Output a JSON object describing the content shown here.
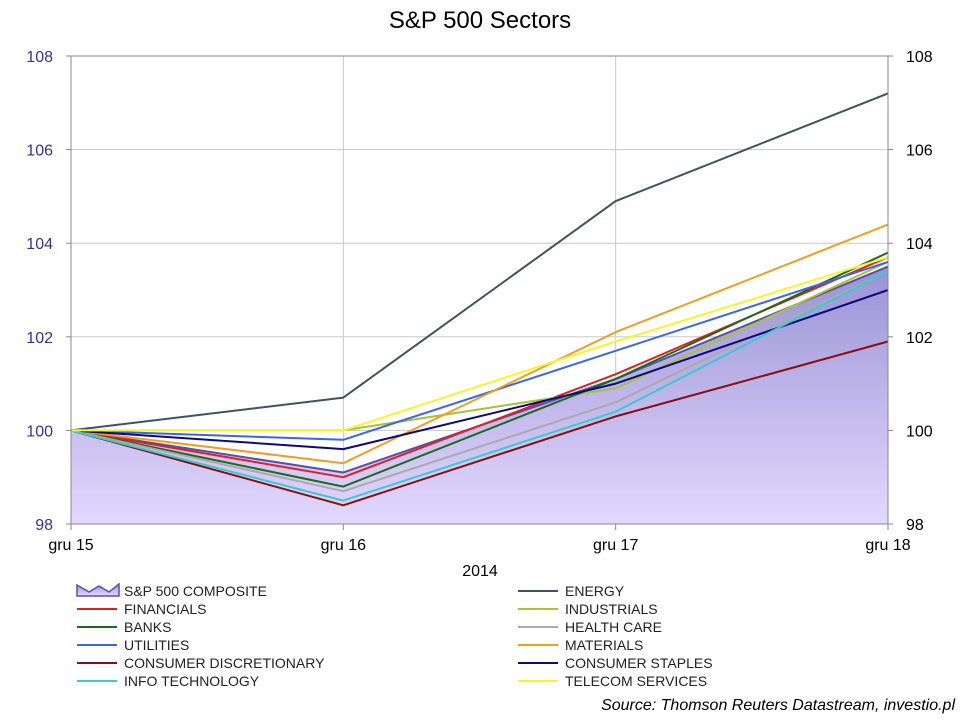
{
  "chart_data": {
    "type": "line",
    "title": "S&P 500 Sectors",
    "xlabel": "2014",
    "categories": [
      "gru 15",
      "gru 16",
      "gru 17",
      "gru 18"
    ],
    "ylim": [
      98,
      108
    ],
    "yticks": [
      98,
      100,
      102,
      104,
      106,
      108
    ],
    "grid": true,
    "legend_position": "bottom",
    "source": "Source: Thomson Reuters Datastream, investio.pl",
    "series": [
      {
        "name": "S&P 500 COMPOSITE",
        "style": "area",
        "color": "#7b6fbf",
        "values": [
          100,
          99.1,
          101.1,
          103.5
        ]
      },
      {
        "name": "ENERGY",
        "color": "#3b5560",
        "values": [
          100,
          100.7,
          104.9,
          107.2
        ]
      },
      {
        "name": "FINANCIALS",
        "color": "#e0201e",
        "values": [
          100,
          99.0,
          101.2,
          103.7
        ]
      },
      {
        "name": "INDUSTRIALS",
        "color": "#a8c23a",
        "values": [
          100,
          100.0,
          100.9,
          103.6
        ]
      },
      {
        "name": "BANKS",
        "color": "#1b6b1b",
        "values": [
          100,
          98.8,
          101.1,
          103.8
        ]
      },
      {
        "name": "HEALTH CARE",
        "color": "#aaaaaa",
        "values": [
          100,
          98.7,
          100.6,
          103.4
        ]
      },
      {
        "name": "UTILITIES",
        "color": "#3b66e6",
        "values": [
          100,
          99.8,
          101.7,
          103.6
        ]
      },
      {
        "name": "MATERIALS",
        "color": "#f39c1e",
        "values": [
          100,
          99.3,
          102.1,
          104.4
        ]
      },
      {
        "name": "CONSUMER DISCRETIONARY",
        "color": "#8b0e0e",
        "values": [
          100,
          98.4,
          100.3,
          101.9
        ]
      },
      {
        "name": "CONSUMER STAPLES",
        "color": "#0b0b7e",
        "values": [
          100,
          99.6,
          101.0,
          103.0
        ]
      },
      {
        "name": "INFO TECHNOLOGY",
        "color": "#3ccad0",
        "values": [
          100,
          98.5,
          100.4,
          103.4
        ]
      },
      {
        "name": "TELECOM SERVICES",
        "color": "#f6f62a",
        "values": [
          100,
          100.0,
          101.9,
          103.7
        ]
      }
    ]
  }
}
